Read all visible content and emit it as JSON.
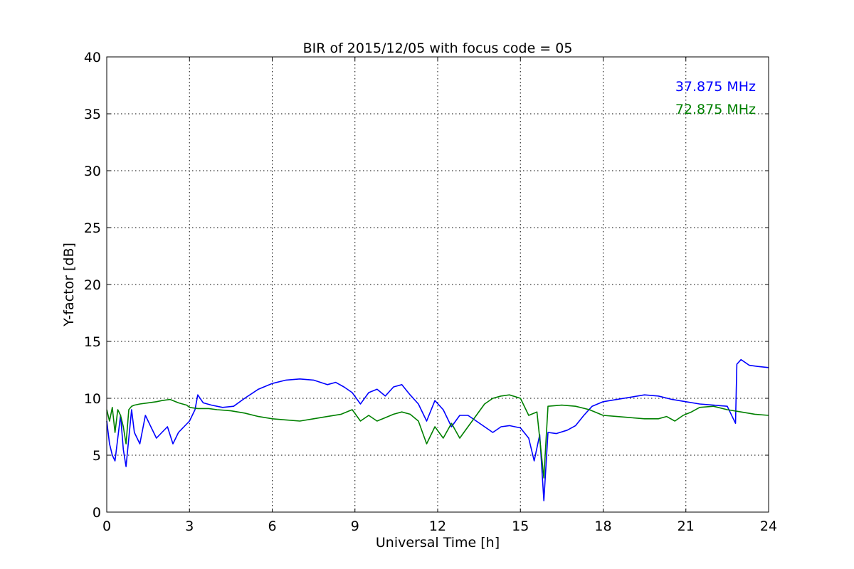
{
  "chart_data": {
    "type": "line",
    "title": "BIR of 2015/12/05 with focus code = 05",
    "xlabel": "Universal Time [h]",
    "ylabel": "Y-factor [dB]",
    "xlim": [
      0,
      24
    ],
    "ylim": [
      0,
      40
    ],
    "xticks": [
      0,
      3,
      6,
      9,
      12,
      15,
      18,
      21,
      24
    ],
    "yticks": [
      0,
      5,
      10,
      15,
      20,
      25,
      30,
      35,
      40
    ],
    "grid": true,
    "legend_position": "top-right",
    "series": [
      {
        "name": "37.875 MHz",
        "color": "#0000ff",
        "points": [
          [
            0,
            8.0
          ],
          [
            0.1,
            6.0
          ],
          [
            0.2,
            5.0
          ],
          [
            0.3,
            4.5
          ],
          [
            0.4,
            6.5
          ],
          [
            0.5,
            8.5
          ],
          [
            0.6,
            5.5
          ],
          [
            0.7,
            4.0
          ],
          [
            0.8,
            6.5
          ],
          [
            0.9,
            9.0
          ],
          [
            1.0,
            7.0
          ],
          [
            1.2,
            6.0
          ],
          [
            1.4,
            8.5
          ],
          [
            1.6,
            7.5
          ],
          [
            1.8,
            6.5
          ],
          [
            2.0,
            7.0
          ],
          [
            2.2,
            7.5
          ],
          [
            2.4,
            6.0
          ],
          [
            2.6,
            7.0
          ],
          [
            2.8,
            7.5
          ],
          [
            3.0,
            8.0
          ],
          [
            3.2,
            9.0
          ],
          [
            3.3,
            10.3
          ],
          [
            3.5,
            9.6
          ],
          [
            3.8,
            9.4
          ],
          [
            4.2,
            9.2
          ],
          [
            4.6,
            9.3
          ],
          [
            5.0,
            10.0
          ],
          [
            5.5,
            10.8
          ],
          [
            6.0,
            11.3
          ],
          [
            6.5,
            11.6
          ],
          [
            7.0,
            11.7
          ],
          [
            7.5,
            11.6
          ],
          [
            8.0,
            11.2
          ],
          [
            8.3,
            11.4
          ],
          [
            8.6,
            11.0
          ],
          [
            8.9,
            10.5
          ],
          [
            9.2,
            9.5
          ],
          [
            9.5,
            10.5
          ],
          [
            9.8,
            10.8
          ],
          [
            10.1,
            10.2
          ],
          [
            10.4,
            11.0
          ],
          [
            10.7,
            11.2
          ],
          [
            11.0,
            10.3
          ],
          [
            11.3,
            9.5
          ],
          [
            11.6,
            8.0
          ],
          [
            11.9,
            9.8
          ],
          [
            12.2,
            9.0
          ],
          [
            12.5,
            7.5
          ],
          [
            12.8,
            8.5
          ],
          [
            13.1,
            8.5
          ],
          [
            13.4,
            8.0
          ],
          [
            13.7,
            7.5
          ],
          [
            14.0,
            7.0
          ],
          [
            14.3,
            7.5
          ],
          [
            14.6,
            7.6
          ],
          [
            15.0,
            7.4
          ],
          [
            15.3,
            6.5
          ],
          [
            15.5,
            4.5
          ],
          [
            15.7,
            6.8
          ],
          [
            15.85,
            1.0
          ],
          [
            16.0,
            7.0
          ],
          [
            16.3,
            6.9
          ],
          [
            16.7,
            7.2
          ],
          [
            17.0,
            7.6
          ],
          [
            17.3,
            8.5
          ],
          [
            17.6,
            9.3
          ],
          [
            18.0,
            9.7
          ],
          [
            18.5,
            9.9
          ],
          [
            19.0,
            10.1
          ],
          [
            19.5,
            10.3
          ],
          [
            20.0,
            10.2
          ],
          [
            20.5,
            9.9
          ],
          [
            21.0,
            9.7
          ],
          [
            21.5,
            9.5
          ],
          [
            22.0,
            9.4
          ],
          [
            22.5,
            9.3
          ],
          [
            22.8,
            7.8
          ],
          [
            22.85,
            13.0
          ],
          [
            23.0,
            13.4
          ],
          [
            23.3,
            12.9
          ],
          [
            23.6,
            12.8
          ],
          [
            24.0,
            12.7
          ]
        ]
      },
      {
        "name": "72.875 MHz",
        "color": "#008000",
        "points": [
          [
            0,
            9.0
          ],
          [
            0.1,
            8.0
          ],
          [
            0.2,
            9.2
          ],
          [
            0.3,
            7.0
          ],
          [
            0.4,
            9.0
          ],
          [
            0.5,
            8.5
          ],
          [
            0.6,
            7.5
          ],
          [
            0.7,
            6.0
          ],
          [
            0.8,
            9.0
          ],
          [
            0.9,
            9.3
          ],
          [
            1.0,
            9.4
          ],
          [
            1.2,
            9.5
          ],
          [
            1.5,
            9.6
          ],
          [
            1.8,
            9.7
          ],
          [
            2.0,
            9.8
          ],
          [
            2.3,
            9.9
          ],
          [
            2.6,
            9.6
          ],
          [
            2.9,
            9.4
          ],
          [
            3.0,
            9.2
          ],
          [
            3.3,
            9.1
          ],
          [
            3.7,
            9.1
          ],
          [
            4.0,
            9.0
          ],
          [
            4.5,
            8.9
          ],
          [
            5.0,
            8.7
          ],
          [
            5.5,
            8.4
          ],
          [
            6.0,
            8.2
          ],
          [
            6.5,
            8.1
          ],
          [
            7.0,
            8.0
          ],
          [
            7.5,
            8.2
          ],
          [
            8.0,
            8.4
          ],
          [
            8.5,
            8.6
          ],
          [
            8.9,
            9.0
          ],
          [
            9.2,
            8.0
          ],
          [
            9.5,
            8.5
          ],
          [
            9.8,
            8.0
          ],
          [
            10.1,
            8.3
          ],
          [
            10.4,
            8.6
          ],
          [
            10.7,
            8.8
          ],
          [
            11.0,
            8.6
          ],
          [
            11.3,
            8.0
          ],
          [
            11.6,
            6.0
          ],
          [
            11.9,
            7.5
          ],
          [
            12.2,
            6.5
          ],
          [
            12.5,
            7.8
          ],
          [
            12.8,
            6.5
          ],
          [
            13.1,
            7.5
          ],
          [
            13.4,
            8.5
          ],
          [
            13.7,
            9.5
          ],
          [
            14.0,
            10.0
          ],
          [
            14.3,
            10.2
          ],
          [
            14.6,
            10.3
          ],
          [
            15.0,
            10.0
          ],
          [
            15.3,
            8.5
          ],
          [
            15.6,
            8.8
          ],
          [
            15.85,
            3.0
          ],
          [
            16.0,
            9.3
          ],
          [
            16.5,
            9.4
          ],
          [
            17.0,
            9.3
          ],
          [
            17.5,
            9.0
          ],
          [
            18.0,
            8.5
          ],
          [
            18.5,
            8.4
          ],
          [
            19.0,
            8.3
          ],
          [
            19.5,
            8.2
          ],
          [
            20.0,
            8.2
          ],
          [
            20.3,
            8.4
          ],
          [
            20.6,
            8.0
          ],
          [
            20.9,
            8.5
          ],
          [
            21.2,
            8.8
          ],
          [
            21.5,
            9.2
          ],
          [
            22.0,
            9.3
          ],
          [
            22.5,
            9.0
          ],
          [
            23.0,
            8.8
          ],
          [
            23.5,
            8.6
          ],
          [
            24.0,
            8.5
          ]
        ]
      }
    ]
  }
}
